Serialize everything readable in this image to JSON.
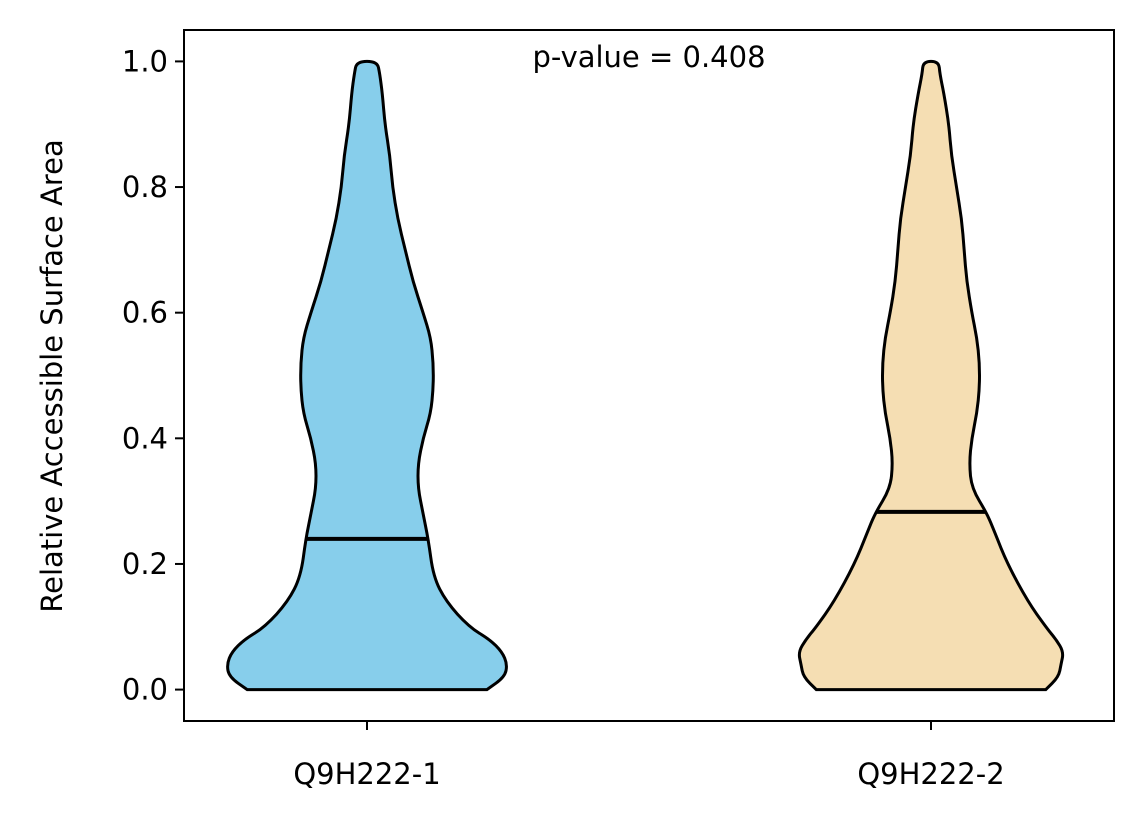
{
  "chart_data": {
    "type": "violin",
    "title": "",
    "xlabel": "",
    "ylabel": "Relative Accessible Surface Area",
    "annotation": "p-value = 0.408",
    "ylim": [
      -0.05,
      1.05
    ],
    "yticks": [
      "0.0",
      "0.2",
      "0.4",
      "0.6",
      "0.8",
      "1.0"
    ],
    "grid": false,
    "legend": "none",
    "categories": [
      "Q9H222-1",
      "Q9H222-2"
    ],
    "series": [
      {
        "category": "Q9H222-1",
        "color": "#87CEEB",
        "median": 0.24,
        "min": 0.0,
        "max": 1.0,
        "density_profile": [
          [
            0.0,
            0.47
          ],
          [
            0.02,
            0.54
          ],
          [
            0.04,
            0.55
          ],
          [
            0.06,
            0.53
          ],
          [
            0.08,
            0.48
          ],
          [
            0.1,
            0.4
          ],
          [
            0.14,
            0.31
          ],
          [
            0.18,
            0.26
          ],
          [
            0.24,
            0.24
          ],
          [
            0.28,
            0.22
          ],
          [
            0.32,
            0.2
          ],
          [
            0.36,
            0.2
          ],
          [
            0.4,
            0.22
          ],
          [
            0.44,
            0.25
          ],
          [
            0.48,
            0.26
          ],
          [
            0.52,
            0.26
          ],
          [
            0.56,
            0.25
          ],
          [
            0.6,
            0.22
          ],
          [
            0.65,
            0.18
          ],
          [
            0.7,
            0.15
          ],
          [
            0.75,
            0.12
          ],
          [
            0.8,
            0.1
          ],
          [
            0.85,
            0.09
          ],
          [
            0.9,
            0.07
          ],
          [
            0.95,
            0.06
          ],
          [
            0.98,
            0.05
          ],
          [
            1.0,
            0.04
          ]
        ]
      },
      {
        "category": "Q9H222-2",
        "color": "#F5DEB3",
        "median": 0.283,
        "min": 0.0,
        "max": 1.0,
        "density_profile": [
          [
            0.0,
            0.45
          ],
          [
            0.02,
            0.5
          ],
          [
            0.04,
            0.51
          ],
          [
            0.06,
            0.52
          ],
          [
            0.08,
            0.49
          ],
          [
            0.1,
            0.45
          ],
          [
            0.14,
            0.38
          ],
          [
            0.2,
            0.3
          ],
          [
            0.25,
            0.25
          ],
          [
            0.28,
            0.22
          ],
          [
            0.32,
            0.16
          ],
          [
            0.36,
            0.15
          ],
          [
            0.4,
            0.16
          ],
          [
            0.44,
            0.18
          ],
          [
            0.48,
            0.19
          ],
          [
            0.52,
            0.19
          ],
          [
            0.56,
            0.18
          ],
          [
            0.6,
            0.16
          ],
          [
            0.65,
            0.14
          ],
          [
            0.7,
            0.13
          ],
          [
            0.75,
            0.12
          ],
          [
            0.8,
            0.1
          ],
          [
            0.85,
            0.08
          ],
          [
            0.9,
            0.07
          ],
          [
            0.95,
            0.05
          ],
          [
            0.98,
            0.035
          ],
          [
            1.0,
            0.03
          ]
        ]
      }
    ]
  }
}
